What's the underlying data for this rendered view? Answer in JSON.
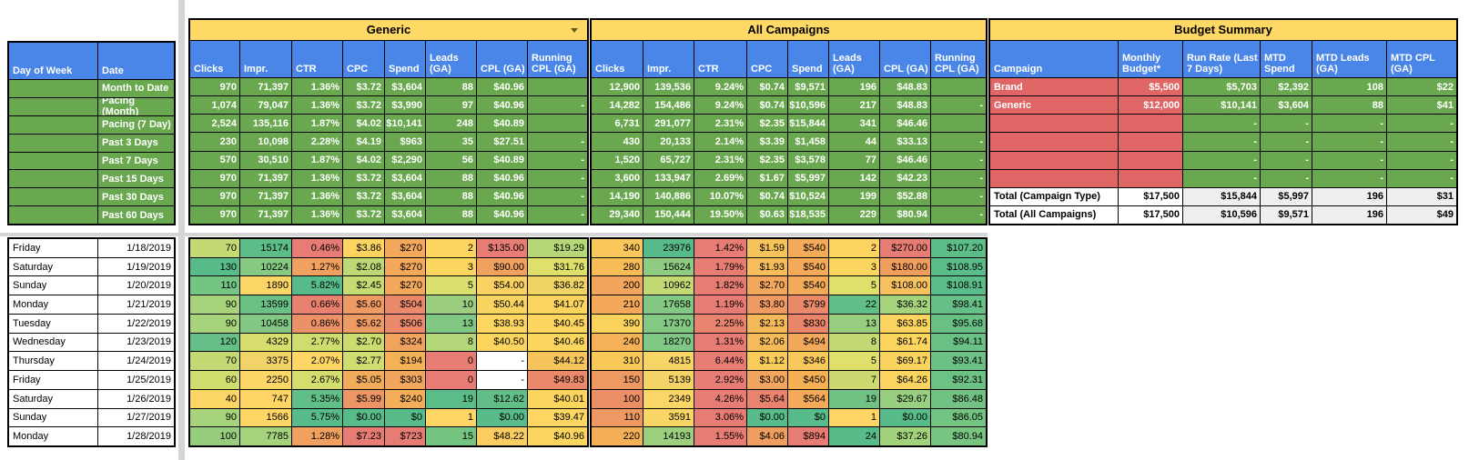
{
  "sheet": {
    "colors": {
      "banner": "#ffd966",
      "header_blue": "#4a86e8",
      "row_green": "#6aa84f",
      "budget_red": "#e06666",
      "total_gray": "#efefef",
      "grid": "#000000"
    },
    "period_table": {
      "columns": [
        "Day of Week",
        "Date"
      ],
      "periods": [
        "Month to Date",
        "Pacing (Month)",
        "Pacing (7 Day)",
        "Past 3 Days",
        "Past 7 Days",
        "Past 15 Days",
        "Past 30 Days",
        "Past 60 Days"
      ]
    },
    "generic": {
      "title": "Generic",
      "has_dropdown": true,
      "columns": [
        "Clicks",
        "Impr.",
        "CTR",
        "CPC",
        "Spend",
        "Leads (GA)",
        "CPL (GA)",
        "Running CPL (GA)"
      ],
      "rows": [
        [
          "970",
          "71,397",
          "1.36%",
          "$3.72",
          "$3,604",
          "88",
          "$40.96",
          ""
        ],
        [
          "1,074",
          "79,047",
          "1.36%",
          "$3.72",
          "$3,990",
          "97",
          "$40.96",
          "-"
        ],
        [
          "2,524",
          "135,116",
          "1.87%",
          "$4.02",
          "$10,141",
          "248",
          "$40.89",
          ""
        ],
        [
          "230",
          "10,098",
          "2.28%",
          "$4.19",
          "$963",
          "35",
          "$27.51",
          "-"
        ],
        [
          "570",
          "30,510",
          "1.87%",
          "$4.02",
          "$2,290",
          "56",
          "$40.89",
          "-"
        ],
        [
          "970",
          "71,397",
          "1.36%",
          "$3.72",
          "$3,604",
          "88",
          "$40.96",
          "-"
        ],
        [
          "970",
          "71,397",
          "1.36%",
          "$3.72",
          "$3,604",
          "88",
          "$40.96",
          "-"
        ],
        [
          "970",
          "71,397",
          "1.36%",
          "$3.72",
          "$3,604",
          "88",
          "$40.96",
          "-"
        ]
      ]
    },
    "all_campaigns": {
      "title": "All Campaigns",
      "has_dropdown": false,
      "columns": [
        "Clicks",
        "Impr.",
        "CTR",
        "CPC",
        "Spend",
        "Leads (GA)",
        "CPL (GA)",
        "Running CPL (GA)"
      ],
      "rows": [
        [
          "12,900",
          "139,536",
          "9.24%",
          "$0.74",
          "$9,571",
          "196",
          "$48.83",
          ""
        ],
        [
          "14,282",
          "154,486",
          "9.24%",
          "$0.74",
          "$10,596",
          "217",
          "$48.83",
          "-"
        ],
        [
          "6,731",
          "291,077",
          "2.31%",
          "$2.35",
          "$15,844",
          "341",
          "$46.46",
          ""
        ],
        [
          "430",
          "20,133",
          "2.14%",
          "$3.39",
          "$1,458",
          "44",
          "$33.13",
          "-"
        ],
        [
          "1,520",
          "65,727",
          "2.31%",
          "$2.35",
          "$3,578",
          "77",
          "$46.46",
          "-"
        ],
        [
          "3,600",
          "133,947",
          "2.69%",
          "$1.67",
          "$5,997",
          "142",
          "$42.23",
          "-"
        ],
        [
          "14,190",
          "140,886",
          "10.07%",
          "$0.74",
          "$10,524",
          "199",
          "$52.88",
          "-"
        ],
        [
          "29,340",
          "150,444",
          "19.50%",
          "$0.63",
          "$18,535",
          "229",
          "$80.94",
          "-"
        ]
      ]
    },
    "budget_summary": {
      "title": "Budget Summary",
      "columns": [
        "Campaign",
        "Monthly Budget*",
        "Run Rate (Last 7 Days)",
        "MTD Spend",
        "MTD Leads (GA)",
        "MTD CPL (GA)"
      ],
      "rows": [
        {
          "type": "data",
          "label": "Brand",
          "cells": [
            "$5,500",
            "$5,703",
            "$2,392",
            "108",
            "$22"
          ]
        },
        {
          "type": "data",
          "label": "Generic",
          "cells": [
            "$12,000",
            "$10,141",
            "$3,604",
            "88",
            "$41"
          ]
        },
        {
          "type": "empty",
          "label": "",
          "cells": [
            "",
            "-",
            "-",
            "-",
            "-"
          ]
        },
        {
          "type": "empty",
          "label": "",
          "cells": [
            "",
            "-",
            "-",
            "-",
            "-"
          ]
        },
        {
          "type": "empty",
          "label": "",
          "cells": [
            "",
            "-",
            "-",
            "-",
            "-"
          ]
        },
        {
          "type": "empty",
          "label": "",
          "cells": [
            "",
            "-",
            "-",
            "-",
            "-"
          ]
        },
        {
          "type": "total",
          "label": "Total (Campaign Type)",
          "cells": [
            "$17,500",
            "$15,844",
            "$5,997",
            "196",
            "$31"
          ]
        },
        {
          "type": "total",
          "label": "Total (All Campaigns)",
          "cells": [
            "$17,500",
            "$10,596",
            "$9,571",
            "196",
            "$49"
          ]
        }
      ]
    },
    "daily": {
      "days": [
        {
          "day": "Friday",
          "date": "1/18/2019"
        },
        {
          "day": "Saturday",
          "date": "1/19/2019"
        },
        {
          "day": "Sunday",
          "date": "1/20/2019"
        },
        {
          "day": "Monday",
          "date": "1/21/2019"
        },
        {
          "day": "Tuesday",
          "date": "1/22/2019"
        },
        {
          "day": "Wednesday",
          "date": "1/23/2019"
        },
        {
          "day": "Thursday",
          "date": "1/24/2019"
        },
        {
          "day": "Friday",
          "date": "1/25/2019"
        },
        {
          "day": "Saturday",
          "date": "1/26/2019"
        },
        {
          "day": "Sunday",
          "date": "1/27/2019"
        },
        {
          "day": "Monday",
          "date": "1/28/2019"
        }
      ],
      "generic_cells": [
        [
          [
            "70",
            "#c3da74"
          ],
          [
            "15174",
            "#5dbd88"
          ],
          [
            "0.46%",
            "#e67c73"
          ],
          [
            "$3.86",
            "#fcd45f"
          ],
          [
            "$270",
            "#f3a85c"
          ],
          [
            "2",
            "#fcd45f"
          ],
          [
            "$135.00",
            "#e67c73"
          ],
          [
            "$19.29",
            "#b5d777"
          ]
        ],
        [
          [
            "130",
            "#57bb8a"
          ],
          [
            "10224",
            "#85c983"
          ],
          [
            "1.27%",
            "#f0a15f"
          ],
          [
            "$2.08",
            "#bcd976"
          ],
          [
            "$270",
            "#f3a85c"
          ],
          [
            "3",
            "#fbd55e"
          ],
          [
            "$90.00",
            "#f0a05f"
          ],
          [
            "$31.76",
            "#dfe06c"
          ]
        ],
        [
          [
            "110",
            "#74c482"
          ],
          [
            "1890",
            "#fbd666"
          ],
          [
            "5.82%",
            "#57bb8a"
          ],
          [
            "$2.45",
            "#c6db73"
          ],
          [
            "$270",
            "#f3a85c"
          ],
          [
            "5",
            "#dadf6e"
          ],
          [
            "$54.00",
            "#f9d061"
          ],
          [
            "$36.82",
            "#f0d365"
          ]
        ],
        [
          [
            "90",
            "#a7d37b"
          ],
          [
            "13599",
            "#6bc086"
          ],
          [
            "0.66%",
            "#e8826f"
          ],
          [
            "$5.60",
            "#ee9a63"
          ],
          [
            "$504",
            "#ea8a6b"
          ],
          [
            "10",
            "#9bcf7f"
          ],
          [
            "$50.44",
            "#f9d35f"
          ],
          [
            "$41.07",
            "#fad45e"
          ]
        ],
        [
          [
            "90",
            "#a7d37b"
          ],
          [
            "10458",
            "#82c884"
          ],
          [
            "0.86%",
            "#ec9066"
          ],
          [
            "$5.62",
            "#ee9a63"
          ],
          [
            "$506",
            "#ea8a6b"
          ],
          [
            "13",
            "#80c783"
          ],
          [
            "$38.93",
            "#fdd662"
          ],
          [
            "$40.45",
            "#fbd55e"
          ]
        ],
        [
          [
            "120",
            "#65bf86"
          ],
          [
            "4329",
            "#d7de6e"
          ],
          [
            "2.77%",
            "#cfdd70"
          ],
          [
            "$2.70",
            "#cddc71"
          ],
          [
            "$324",
            "#f1a35e"
          ],
          [
            "8",
            "#b3d679"
          ],
          [
            "$40.50",
            "#fcd55e"
          ],
          [
            "$40.46",
            "#fbd55e"
          ]
        ],
        [
          [
            "70",
            "#c3da74"
          ],
          [
            "3375",
            "#f2d368"
          ],
          [
            "2.07%",
            "#fed666"
          ],
          [
            "$2.77",
            "#cfdc71"
          ],
          [
            "$194",
            "#f5b156"
          ],
          [
            "0",
            "#e67c73"
          ],
          [
            "-",
            "#ffffff"
          ],
          [
            "$44.12",
            "#f7c45c"
          ]
        ],
        [
          [
            "60",
            "#d2dd70"
          ],
          [
            "2250",
            "#fcd666"
          ],
          [
            "2.67%",
            "#d4de6f"
          ],
          [
            "$5.05",
            "#f2ab5b"
          ],
          [
            "$303",
            "#f2a65d"
          ],
          [
            "0",
            "#e67c73"
          ],
          [
            "-",
            "#ffffff"
          ],
          [
            "$49.83",
            "#ea8a6a"
          ]
        ],
        [
          [
            "40",
            "#fbd666"
          ],
          [
            "747",
            "#ffd666"
          ],
          [
            "5.35%",
            "#61be87"
          ],
          [
            "$5.99",
            "#ed9566"
          ],
          [
            "$240",
            "#f4ad59"
          ],
          [
            "19",
            "#5abc89"
          ],
          [
            "$12.62",
            "#62be87"
          ],
          [
            "$40.01",
            "#fbd55e"
          ]
        ],
        [
          [
            "90",
            "#a7d37b"
          ],
          [
            "1566",
            "#fdd666"
          ],
          [
            "5.75%",
            "#58bb8a"
          ],
          [
            "$0.00",
            "#57bb8a"
          ],
          [
            "$0",
            "#57bb8a"
          ],
          [
            "1",
            "#ffd666"
          ],
          [
            "$0.00",
            "#57bb8a"
          ],
          [
            "$39.47",
            "#fed664"
          ]
        ],
        [
          [
            "100",
            "#97ce7e"
          ],
          [
            "7785",
            "#a5d27c"
          ],
          [
            "1.28%",
            "#f0a15f"
          ],
          [
            "$7.23",
            "#e67c73"
          ],
          [
            "$723",
            "#e67c73"
          ],
          [
            "15",
            "#76c481"
          ],
          [
            "$48.22",
            "#f9cd5f"
          ],
          [
            "$40.96",
            "#fbd55e"
          ]
        ]
      ],
      "all_cells": [
        [
          [
            "340",
            "#f9c75b"
          ],
          [
            "23976",
            "#57bb8a"
          ],
          [
            "1.42%",
            "#e67c73"
          ],
          [
            "$1.59",
            "#f7c35b"
          ],
          [
            "$540",
            "#f4ab59"
          ],
          [
            "2",
            "#fcd45f"
          ],
          [
            "$270.00",
            "#e67c73"
          ],
          [
            "$107.20",
            "#5dbd88"
          ]
        ],
        [
          [
            "280",
            "#f7bc58"
          ],
          [
            "15624",
            "#8fcc81"
          ],
          [
            "1.79%",
            "#e67d72"
          ],
          [
            "$1.93",
            "#f6bd5a"
          ],
          [
            "$540",
            "#f4ab59"
          ],
          [
            "3",
            "#fbd55e"
          ],
          [
            "$180.00",
            "#f09e5e"
          ],
          [
            "$108.95",
            "#5abc89"
          ]
        ],
        [
          [
            "200",
            "#f2a55d"
          ],
          [
            "10962",
            "#c3da74"
          ],
          [
            "1.82%",
            "#e67d72"
          ],
          [
            "$2.70",
            "#f3a75c"
          ],
          [
            "$540",
            "#f4ab59"
          ],
          [
            "5",
            "#dfe06b"
          ],
          [
            "$108.00",
            "#f8c15f"
          ],
          [
            "$108.91",
            "#5abc89"
          ]
        ],
        [
          [
            "210",
            "#f3a85c"
          ],
          [
            "17658",
            "#82c883"
          ],
          [
            "1.19%",
            "#e67c73"
          ],
          [
            "$3.80",
            "#ef9a62"
          ],
          [
            "$799",
            "#ea8a6b"
          ],
          [
            "22",
            "#60be87"
          ],
          [
            "$36.32",
            "#a5d27c"
          ],
          [
            "$98.41",
            "#65bf86"
          ]
        ],
        [
          [
            "390",
            "#fbd25c"
          ],
          [
            "17370",
            "#84c983"
          ],
          [
            "2.25%",
            "#e8846d"
          ],
          [
            "$2.13",
            "#f6b95a"
          ],
          [
            "$830",
            "#e98569"
          ],
          [
            "13",
            "#97ce80"
          ],
          [
            "$63.85",
            "#fbd45f"
          ],
          [
            "$95.68",
            "#68c085"
          ]
        ],
        [
          [
            "240",
            "#f5b158"
          ],
          [
            "18270",
            "#7fc785"
          ],
          [
            "1.31%",
            "#e67c73"
          ],
          [
            "$2.06",
            "#f6bb59"
          ],
          [
            "$494",
            "#f3a95c"
          ],
          [
            "8",
            "#c3da74"
          ],
          [
            "$61.74",
            "#fcd55e"
          ],
          [
            "$94.11",
            "#6ac185"
          ]
        ],
        [
          [
            "310",
            "#f9c95a"
          ],
          [
            "4815",
            "#f6d465"
          ],
          [
            "6.44%",
            "#e67c73"
          ],
          [
            "$1.12",
            "#f9cb5b"
          ],
          [
            "$346",
            "#f9c85a"
          ],
          [
            "5",
            "#dfe06b"
          ],
          [
            "$69.17",
            "#fad35f"
          ],
          [
            "$93.41",
            "#6bc185"
          ]
        ],
        [
          [
            "150",
            "#ee9962"
          ],
          [
            "5139",
            "#f4d466"
          ],
          [
            "2.92%",
            "#e67c73"
          ],
          [
            "$3.00",
            "#f2a55e"
          ],
          [
            "$450",
            "#f5b056"
          ],
          [
            "7",
            "#cdd970"
          ],
          [
            "$64.26",
            "#fbd45f"
          ],
          [
            "$92.31",
            "#6cc184"
          ]
        ],
        [
          [
            "100",
            "#ec8f66"
          ],
          [
            "2349",
            "#fbd666"
          ],
          [
            "4.26%",
            "#e67c73"
          ],
          [
            "$5.64",
            "#e88370"
          ],
          [
            "$564",
            "#f4aa59"
          ],
          [
            "19",
            "#6fc284"
          ],
          [
            "$29.67",
            "#98cf80"
          ],
          [
            "$86.48",
            "#72c383"
          ]
        ],
        [
          [
            "110",
            "#ee9863"
          ],
          [
            "3591",
            "#f8d565"
          ],
          [
            "3.06%",
            "#e67c73"
          ],
          [
            "$0.00",
            "#57bb8a"
          ],
          [
            "$0",
            "#57bb8a"
          ],
          [
            "1",
            "#ffd666"
          ],
          [
            "$0.00",
            "#57bb8a"
          ],
          [
            "$86.05",
            "#73c383"
          ]
        ],
        [
          [
            "220",
            "#f5b057"
          ],
          [
            "14193",
            "#9dd07e"
          ],
          [
            "1.55%",
            "#e67c73"
          ],
          [
            "$4.06",
            "#ef9d60"
          ],
          [
            "$894",
            "#e67c73"
          ],
          [
            "24",
            "#57bb8a"
          ],
          [
            "$37.26",
            "#a3d27d"
          ],
          [
            "$80.94",
            "#78c582"
          ]
        ]
      ]
    }
  }
}
